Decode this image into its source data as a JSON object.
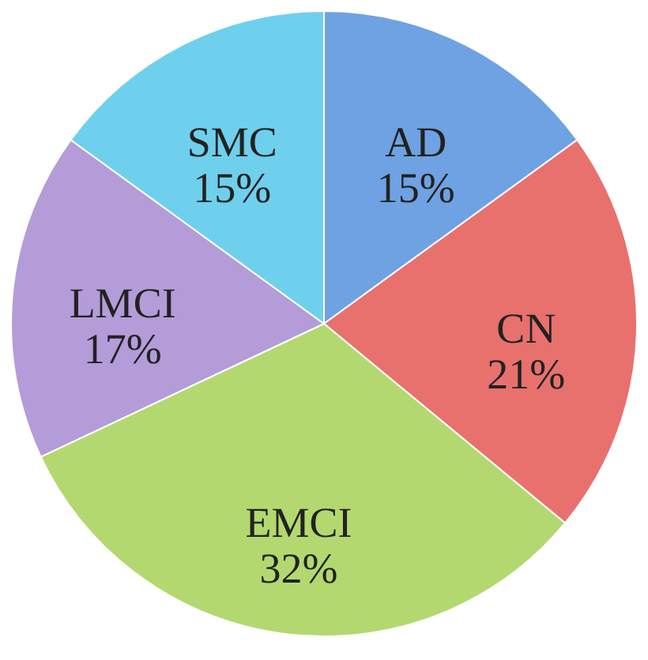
{
  "chart_data": {
    "type": "pie",
    "categories": [
      "AD",
      "CN",
      "EMCI",
      "LMCI",
      "SMC"
    ],
    "values": [
      15,
      21,
      32,
      17,
      15
    ],
    "value_labels": [
      "15%",
      "21%",
      "32%",
      "17%",
      "15%"
    ],
    "colors": [
      "#6fa2e2",
      "#e8716e",
      "#b4d870",
      "#b49cd8",
      "#6ed0ec"
    ],
    "legend": false
  }
}
